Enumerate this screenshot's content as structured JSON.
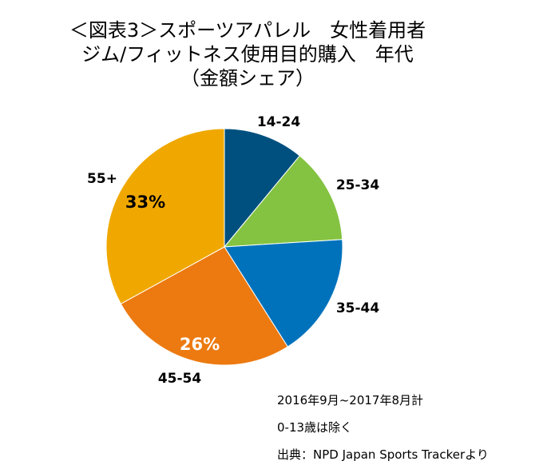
{
  "title_lines": [
    "＜図表3＞スポーツアパレル　女性着用者",
    "ジム/フィットネス使用目的購入　年代",
    "（金額シェア）"
  ],
  "chart_data": {
    "type": "pie",
    "title": "＜図表3＞スポーツアパレル　女性着用者 ジム/フィットネス使用目的購入　年代（金額シェア）",
    "categories": [
      "14-24",
      "25-34",
      "35-44",
      "45-54",
      "55+"
    ],
    "values": [
      11,
      13,
      17,
      26,
      33
    ],
    "data_labels": [
      "",
      "",
      "",
      "26%",
      "33%"
    ],
    "colors": [
      "#00507F",
      "#84C341",
      "#0072BC",
      "#EC7A10",
      "#F0A800"
    ],
    "start_angle": "top, clockwise"
  },
  "notes": [
    "2016年9月~2017年8月計",
    "0-13歳は除く",
    "出典：NPD Japan Sports Trackerより"
  ]
}
